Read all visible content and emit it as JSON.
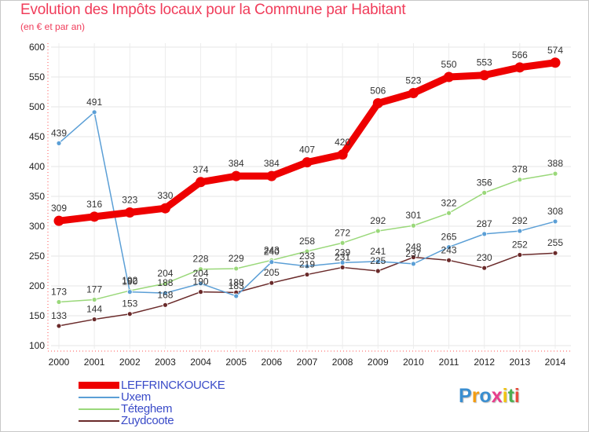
{
  "title": "Evolution des Impôts locaux pour la Commune par Habitant",
  "subtitle": "(en € et par an)",
  "colors": {
    "title": "#f03c5a",
    "legend_text": "#3a4bc8",
    "axis": "#ff5050"
  },
  "chart_data": {
    "type": "line",
    "title": "Evolution des Impôts locaux pour la Commune par Habitant",
    "subtitle": "(en € et par an)",
    "xlabel": "",
    "ylabel": "",
    "ylim": [
      100,
      600
    ],
    "yticks": [
      100,
      150,
      200,
      250,
      300,
      350,
      400,
      450,
      500,
      550,
      600
    ],
    "grid": true,
    "legend_position": "bottom-left",
    "x": [
      "2000",
      "2001",
      "2002",
      "2003",
      "2004",
      "2005",
      "2006",
      "2007",
      "2008",
      "2009",
      "2010",
      "2011",
      "2012",
      "2013",
      "2014"
    ],
    "series": [
      {
        "name": "LEFFRINCKOUCKE",
        "color": "#ee0000",
        "values": [
          309,
          316,
          323,
          330,
          374,
          384,
          384,
          407,
          420,
          506,
          523,
          550,
          553,
          566,
          574
        ]
      },
      {
        "name": "Uxem",
        "color": "#5b9fd6",
        "values": [
          439,
          491,
          190,
          188,
          204,
          183,
          240,
          233,
          239,
          241,
          237,
          265,
          287,
          292,
          308
        ]
      },
      {
        "name": "Téteghem",
        "color": "#9ad87a",
        "values": [
          173,
          177,
          192,
          204,
          228,
          229,
          243,
          258,
          272,
          292,
          301,
          322,
          356,
          378,
          388
        ]
      },
      {
        "name": "Zuydcoote",
        "color": "#6a2a2a",
        "values": [
          133,
          144,
          153,
          168,
          190,
          189,
          205,
          219,
          231,
          225,
          248,
          243,
          230,
          252,
          255
        ]
      }
    ]
  },
  "logo": {
    "letters": [
      "P",
      "r",
      "o",
      "x",
      "i",
      "t",
      "i"
    ],
    "colors": [
      "#3a8ed0",
      "#f39c12",
      "#3a8ed0",
      "#e83e8c",
      "#f1c40f",
      "#4caf50",
      "#e74c3c"
    ]
  }
}
